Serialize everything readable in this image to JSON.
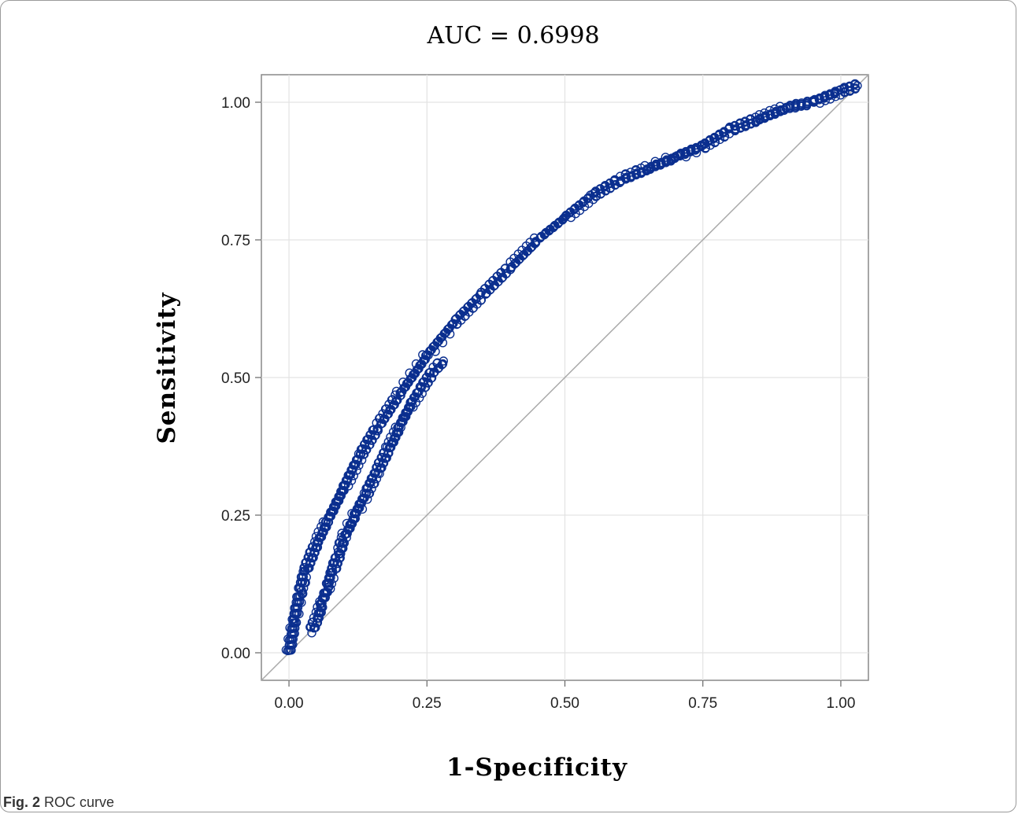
{
  "chart_data": {
    "type": "scatter",
    "title": "AUC = 0.6998",
    "xlabel": "1-Specificity",
    "ylabel": "Sensitivity",
    "xlim": [
      -0.05,
      1.05
    ],
    "ylim": [
      -0.05,
      1.05
    ],
    "xticks": [
      "0.00",
      "0.25",
      "0.50",
      "0.75",
      "1.00"
    ],
    "yticks": [
      "0.00",
      "0.25",
      "0.50",
      "0.75",
      "1.00"
    ],
    "grid": true,
    "reference_line": {
      "x": [
        0,
        1
      ],
      "y": [
        0,
        1
      ],
      "color": "#aaaaaa"
    },
    "series": [
      {
        "color": "#0b2f8f",
        "marker": "circle-open",
        "x": [
          0.0,
          0.01,
          0.02,
          0.03,
          0.05,
          0.07,
          0.1,
          0.13,
          0.16,
          0.2,
          0.25,
          0.3,
          0.35,
          0.4,
          0.45,
          0.5,
          0.55,
          0.6,
          0.65,
          0.7,
          0.75,
          0.8,
          0.85,
          0.9,
          0.95,
          1.0,
          1.03
        ],
        "y": [
          0.0,
          0.06,
          0.11,
          0.15,
          0.2,
          0.24,
          0.3,
          0.36,
          0.41,
          0.47,
          0.54,
          0.6,
          0.65,
          0.7,
          0.75,
          0.79,
          0.83,
          0.86,
          0.88,
          0.9,
          0.92,
          0.95,
          0.97,
          0.99,
          1.0,
          1.02,
          1.03
        ]
      },
      {
        "color": "#0b2f8f",
        "marker": "circle-open",
        "x": [
          0.04,
          0.05,
          0.06,
          0.07,
          0.08,
          0.09,
          0.1,
          0.12,
          0.14,
          0.16,
          0.18,
          0.2,
          0.22,
          0.24,
          0.26,
          0.28
        ],
        "y": [
          0.04,
          0.06,
          0.09,
          0.12,
          0.15,
          0.18,
          0.21,
          0.25,
          0.29,
          0.33,
          0.37,
          0.41,
          0.45,
          0.48,
          0.51,
          0.53
        ]
      }
    ]
  },
  "caption": {
    "fig_label": "Fig. 2",
    "text": " ROC curve"
  }
}
